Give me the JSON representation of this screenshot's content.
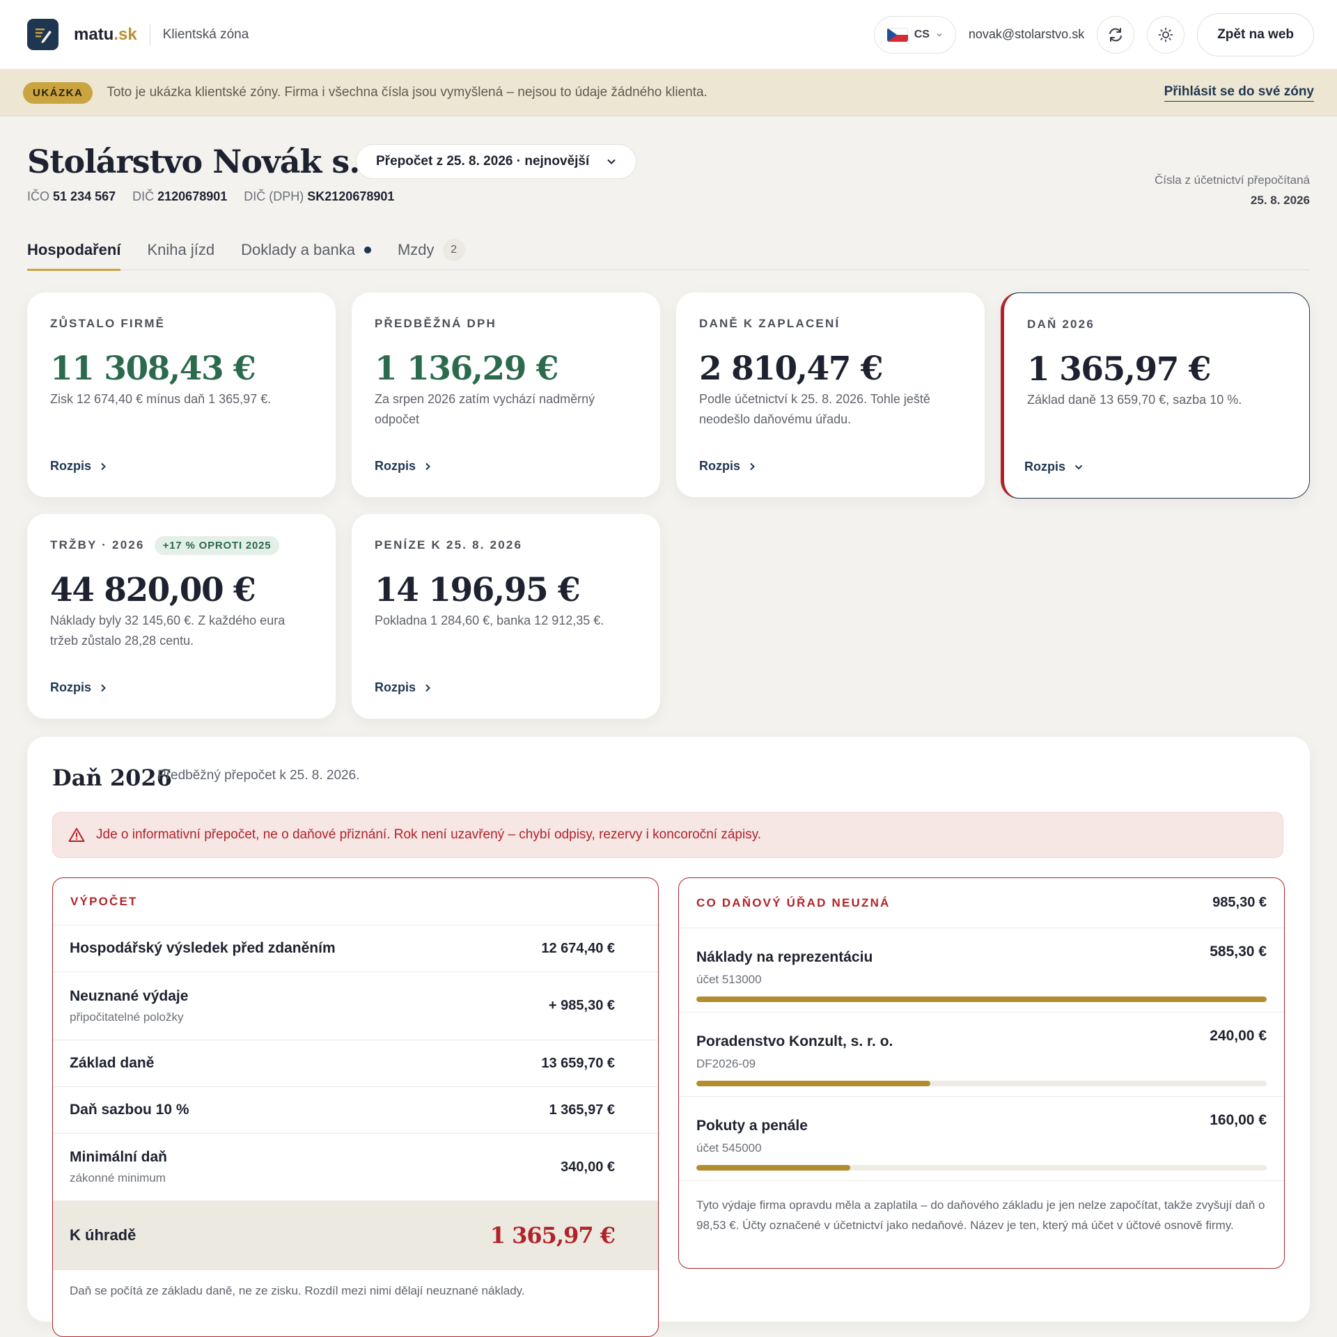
{
  "header": {
    "brand_main": "matu",
    "brand_accent": ".sk",
    "zone": "Klientská zóna",
    "lang": "CS",
    "email": "novak@stolarstvo.sk",
    "back_label": "Zpět na web"
  },
  "banner": {
    "badge": "UKÁZKA",
    "text": "Toto je ukázka klientské zóny. Firma i všechna čísla jsou vymyšlená – nejsou to údaje žádného klienta.",
    "link": "Přihlásit se do své zóny"
  },
  "company": {
    "name": "Stolárstvo Novák s. r. o.",
    "recalc_select": "Přepočet z 25. 8. 2026 · nejnovější",
    "ico_label": "IČO",
    "ico": "51 234 567",
    "dic_label": "DIČ",
    "dic": "2120678901",
    "dph_label": "DIČ (DPH)",
    "dph": "SK2120678901",
    "note_line1": "Čísla z účetnictví přepočítaná",
    "note_date": "25. 8. 2026"
  },
  "tabs": [
    {
      "label": "Hospodaření"
    },
    {
      "label": "Kniha jízd"
    },
    {
      "label": "Doklady a banka"
    },
    {
      "label": "Mzdy",
      "count": "2"
    }
  ],
  "cards": [
    {
      "label": "ZŮSTALO FIRMĚ",
      "value": "11 308,43 €",
      "desc": "Zisk 12 674,40 € mínus daň 1 365,97 €.",
      "link": "Rozpis"
    },
    {
      "label": "PŘEDBĚŽNÁ DPH",
      "value": "1 136,29 €",
      "desc": "Za srpen 2026 zatím vychází nadměrný odpočet",
      "link": "Rozpis"
    },
    {
      "label": "DANĚ K ZAPLACENÍ",
      "value": "2 810,47 €",
      "desc": "Podle účetnictví k 25. 8. 2026. Tohle ještě neodešlo daňovému úřadu.",
      "link": "Rozpis"
    },
    {
      "label": "DAŇ 2026",
      "value": "1 365,97 €",
      "desc": "Základ daně 13 659,70 €, sazba 10 %.",
      "link": "Rozpis"
    },
    {
      "label": "TRŽBY · 2026",
      "badge": "+17 % OPROTI 2025",
      "value": "44 820,00 €",
      "desc": "Náklady byly 32 145,60 €. Z každého eura tržeb zůstalo 28,28 centu.",
      "link": "Rozpis"
    },
    {
      "label": "PENÍZE K 25. 8. 2026",
      "value": "14 196,95 €",
      "desc": "Pokladna 1 284,60 €, banka 12 912,35 €.",
      "link": "Rozpis"
    }
  ],
  "tax": {
    "title": "Daň 2026",
    "subtitle": "Předběžný přepočet k 25. 8. 2026.",
    "alert": "Jde o informativní přepočet, ne o daňové přiznání. Rok není uzavřený – chybí odpisy, rezervy i koncoroční zápisy.",
    "calc_label": "VÝPOČET",
    "rows": [
      {
        "label": "Hospodářský výsledek před zdaněním",
        "sub": "",
        "value": "12 674,40 €"
      },
      {
        "label": "Neuznané výdaje",
        "sub": "připočitatelné položky",
        "value": "+ 985,30 €"
      },
      {
        "label": "Základ daně",
        "sub": "",
        "value": "13 659,70 €"
      },
      {
        "label": "Daň sazbou 10 %",
        "sub": "",
        "value": "1 365,97 €"
      },
      {
        "label": "Minimální daň",
        "sub": "zákonné minimum",
        "value": "340,00 €"
      }
    ],
    "total_label": "K úhradě",
    "total_value": "1 365,97 €",
    "calc_foot": "Daň se počítá ze základu daně, ne ze zisku. Rozdíl mezi nimi dělají neuznané náklady.",
    "nd_label": "CO DAŇOVÝ ÚŘAD NEUZNÁ",
    "nd_total": "985,30 €",
    "nd_items": [
      {
        "name": "Náklady na reprezentáciu",
        "acct": "účet 513000",
        "amount": "585,30 €",
        "share": 1.0
      },
      {
        "name": "Poradenstvo Konzult, s. r. o.",
        "acct": "DF2026-09",
        "amount": "240,00 €",
        "share": 0.41
      },
      {
        "name": "Pokuty a penále",
        "acct": "účet 545000",
        "amount": "160,00 €",
        "share": 0.27
      }
    ],
    "nd_note": "Tyto výdaje firma opravdu měla a zaplatila – do daňového základu je jen nelze započítat, takže zvyšují daň o 98,53 €. Účty označené v účetnictví jako nedaňové. Název je ten, který má účet v účtové osnově firmy."
  },
  "colors": {
    "navy": "#1f3652",
    "gold": "#c9a441",
    "green": "#2b6a4c",
    "red": "#b1232a"
  }
}
